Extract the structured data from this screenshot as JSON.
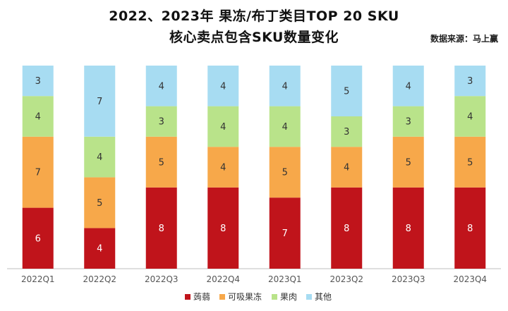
{
  "header": {
    "title_line1": "2022、2023年 果冻/布丁类目TOP 20 SKU",
    "title_line2": "核心卖点包含SKU数量变化",
    "source": "数据来源：马上赢"
  },
  "colors": {
    "蒟蒻": "#c0141b",
    "可吸果冻": "#f7a84a",
    "果肉": "#b9e38a",
    "其他": "#a7dcf2",
    "axis": "#bfbfbf",
    "tick_text": "#555555"
  },
  "chart_data": {
    "type": "bar",
    "stacked": true,
    "title": "2022、2023年 果冻/布丁类目TOP 20 SKU 核心卖点包含SKU数量变化",
    "xlabel": "",
    "ylabel": "",
    "categories": [
      "2022Q1",
      "2022Q2",
      "2022Q3",
      "2022Q4",
      "2023Q1",
      "2023Q2",
      "2023Q3",
      "2023Q4"
    ],
    "series": [
      {
        "name": "蒟蒻",
        "values": [
          6,
          4,
          8,
          8,
          7,
          8,
          8,
          8
        ]
      },
      {
        "name": "可吸果冻",
        "values": [
          7,
          5,
          5,
          4,
          5,
          4,
          5,
          5
        ]
      },
      {
        "name": "果肉",
        "values": [
          4,
          4,
          3,
          4,
          4,
          3,
          3,
          4
        ]
      },
      {
        "name": "其他",
        "values": [
          3,
          7,
          4,
          4,
          4,
          5,
          4,
          3
        ]
      }
    ],
    "ylim": [
      0,
      20
    ],
    "grid": false,
    "data_labels": true,
    "legend_position": "bottom"
  }
}
